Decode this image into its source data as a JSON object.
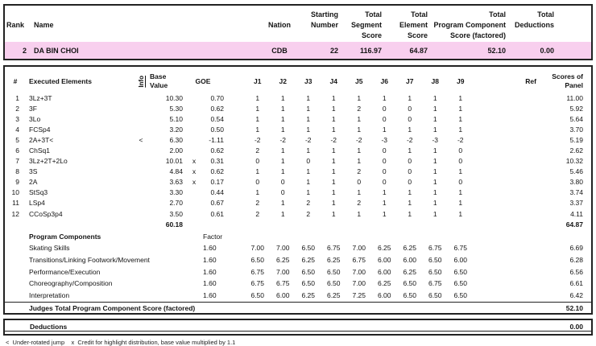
{
  "title_row": {
    "rank_label": "Rank",
    "name_label": "Name",
    "nation_label": "Nation",
    "starting_lines": [
      "Starting",
      "Number"
    ],
    "segment_lines": [
      "Total",
      "Segment",
      "Score"
    ],
    "element_lines": [
      "Total",
      "Element",
      "Score"
    ],
    "component_lines": [
      "Total",
      "Program Component",
      "Score (factored)"
    ],
    "deductions_lines": [
      "Total",
      "Deductions"
    ]
  },
  "competitor": {
    "rank": "2",
    "name": "DA BIN CHOI",
    "nation": "CDB",
    "starting_number": "22",
    "segment_score": "116.97",
    "element_score": "64.87",
    "component_score": "52.10",
    "deductions": "0.00"
  },
  "elements": {
    "num_label": "#",
    "executed_lines": [
      "Executed",
      "Elements"
    ],
    "info_label": "Info",
    "base_lines": [
      "Base",
      "Value"
    ],
    "goe_label": "GOE",
    "judge_labels": [
      "J1",
      "J2",
      "J3",
      "J4",
      "J5",
      "J6",
      "J7",
      "J8",
      "J9"
    ],
    "ref_label": "Ref",
    "panel_lines": [
      "Scores of",
      "Panel"
    ],
    "rows": [
      {
        "num": "1",
        "name": "3Lz+3T",
        "info": "",
        "base": "10.30",
        "x": "",
        "goe": "0.70",
        "j": [
          "1",
          "1",
          "1",
          "1",
          "1",
          "1",
          "1",
          "1",
          "1"
        ],
        "panel": "11.00"
      },
      {
        "num": "2",
        "name": "3F",
        "info": "",
        "base": "5.30",
        "x": "",
        "goe": "0.62",
        "j": [
          "1",
          "1",
          "1",
          "1",
          "2",
          "0",
          "0",
          "1",
          "1"
        ],
        "panel": "5.92"
      },
      {
        "num": "3",
        "name": "3Lo",
        "info": "",
        "base": "5.10",
        "x": "",
        "goe": "0.54",
        "j": [
          "1",
          "1",
          "1",
          "1",
          "1",
          "0",
          "0",
          "1",
          "1"
        ],
        "panel": "5.64"
      },
      {
        "num": "4",
        "name": "FCSp4",
        "info": "",
        "base": "3.20",
        "x": "",
        "goe": "0.50",
        "j": [
          "1",
          "1",
          "1",
          "1",
          "1",
          "1",
          "1",
          "1",
          "1"
        ],
        "panel": "3.70"
      },
      {
        "num": "5",
        "name": "2A+3T<",
        "info": "<",
        "base": "6.30",
        "x": "",
        "goe": "-1.11",
        "j": [
          "-2",
          "-2",
          "-2",
          "-2",
          "-2",
          "-3",
          "-2",
          "-3",
          "-2"
        ],
        "panel": "5.19"
      },
      {
        "num": "6",
        "name": "ChSq1",
        "info": "",
        "base": "2.00",
        "x": "",
        "goe": "0.62",
        "j": [
          "2",
          "1",
          "1",
          "1",
          "1",
          "0",
          "1",
          "1",
          "0"
        ],
        "panel": "2.62"
      },
      {
        "num": "7",
        "name": "3Lz+2T+2Lo",
        "info": "",
        "base": "10.01",
        "x": "x",
        "goe": "0.31",
        "j": [
          "0",
          "1",
          "0",
          "1",
          "1",
          "0",
          "0",
          "1",
          "0"
        ],
        "panel": "10.32"
      },
      {
        "num": "8",
        "name": "3S",
        "info": "",
        "base": "4.84",
        "x": "x",
        "goe": "0.62",
        "j": [
          "1",
          "1",
          "1",
          "1",
          "2",
          "0",
          "0",
          "1",
          "1"
        ],
        "panel": "5.46"
      },
      {
        "num": "9",
        "name": "2A",
        "info": "",
        "base": "3.63",
        "x": "x",
        "goe": "0.17",
        "j": [
          "0",
          "0",
          "1",
          "1",
          "0",
          "0",
          "0",
          "1",
          "0"
        ],
        "panel": "3.80"
      },
      {
        "num": "10",
        "name": "StSq3",
        "info": "",
        "base": "3.30",
        "x": "",
        "goe": "0.44",
        "j": [
          "1",
          "0",
          "1",
          "1",
          "1",
          "1",
          "1",
          "1",
          "1"
        ],
        "panel": "3.74"
      },
      {
        "num": "11",
        "name": "LSp4",
        "info": "",
        "base": "2.70",
        "x": "",
        "goe": "0.67",
        "j": [
          "2",
          "1",
          "2",
          "1",
          "2",
          "1",
          "1",
          "1",
          "1"
        ],
        "panel": "3.37"
      },
      {
        "num": "12",
        "name": "CCoSp3p4",
        "info": "",
        "base": "3.50",
        "x": "",
        "goe": "0.61",
        "j": [
          "2",
          "1",
          "2",
          "1",
          "1",
          "1",
          "1",
          "1",
          "1"
        ],
        "panel": "4.11"
      }
    ],
    "total_base": "60.18",
    "total_panel": "64.87"
  },
  "components": {
    "title": "Program Components",
    "factor_label": "Factor",
    "rows": [
      {
        "name": "Skating Skills",
        "factor": "1.60",
        "j": [
          "7.00",
          "7.00",
          "6.50",
          "6.75",
          "7.00",
          "6.25",
          "6.25",
          "6.75",
          "6.75"
        ],
        "score": "6.69"
      },
      {
        "name": "Transitions/Linking Footwork/Movement",
        "factor": "1.60",
        "j": [
          "6.50",
          "6.25",
          "6.25",
          "6.25",
          "6.75",
          "6.00",
          "6.00",
          "6.50",
          "6.00"
        ],
        "score": "6.28"
      },
      {
        "name": "Performance/Execution",
        "factor": "1.60",
        "j": [
          "6.75",
          "7.00",
          "6.50",
          "6.50",
          "7.00",
          "6.00",
          "6.25",
          "6.50",
          "6.50"
        ],
        "score": "6.56"
      },
      {
        "name": "Choreography/Composition",
        "factor": "1.60",
        "j": [
          "6.75",
          "6.75",
          "6.50",
          "6.50",
          "7.00",
          "6.25",
          "6.50",
          "6.75",
          "6.50"
        ],
        "score": "6.61"
      },
      {
        "name": "Interpretation",
        "factor": "1.60",
        "j": [
          "6.50",
          "6.00",
          "6.25",
          "6.25",
          "7.25",
          "6.00",
          "6.50",
          "6.50",
          "6.50"
        ],
        "score": "6.42"
      }
    ],
    "total_label": "Judges Total Program Component Score (factored)",
    "total_value": "52.10"
  },
  "deductions_box": {
    "label": "Deductions",
    "value": "0.00"
  },
  "footnote": "<  Under-rotated jump    x  Credit for highlight distribution, base value multiplied by 1.1",
  "colors": {
    "highlight_pink": "#f8cfee",
    "border": "#222222"
  }
}
